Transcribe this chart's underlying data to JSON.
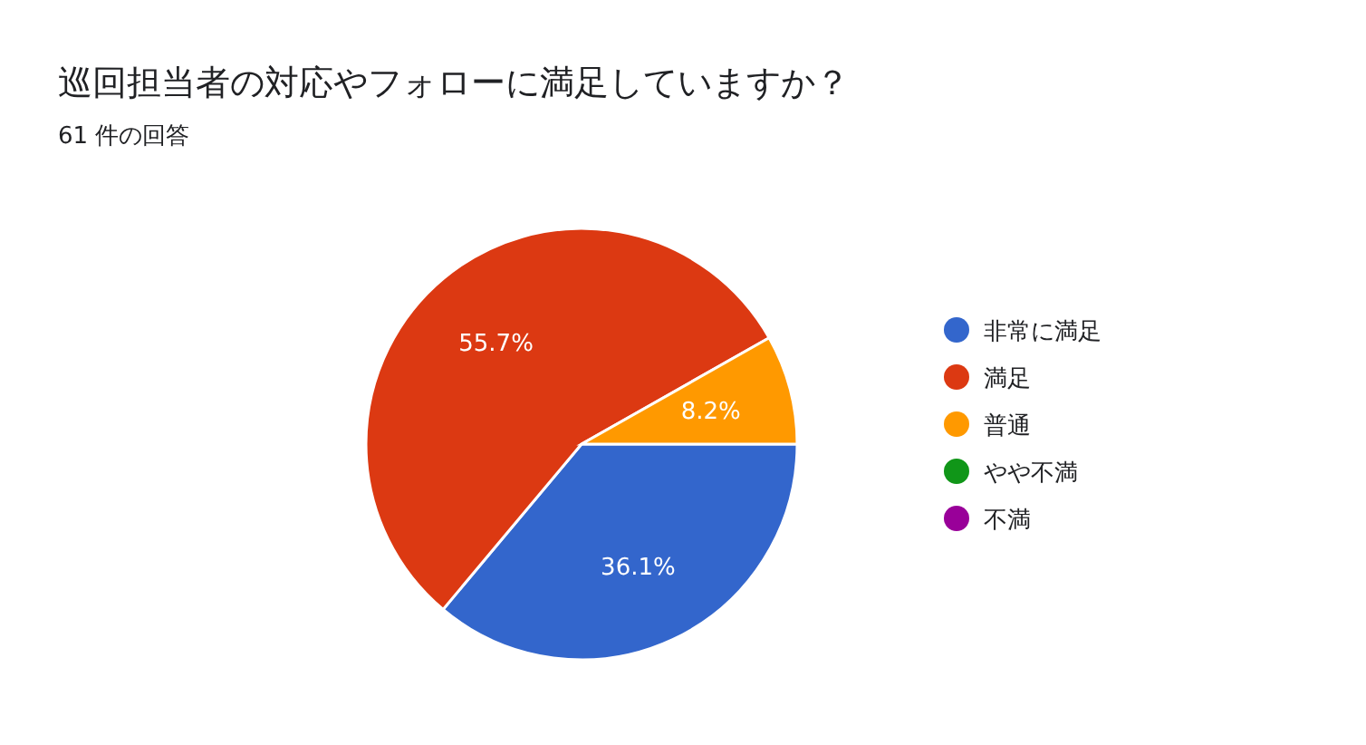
{
  "chart_data": {
    "type": "pie",
    "title": "巡回担当者の対応やフォローに満足していますか？",
    "subtitle": "61 件の回答",
    "categories": [
      "非常に満足",
      "満足",
      "普通",
      "やや不満",
      "不満"
    ],
    "values": [
      36.1,
      55.7,
      8.2,
      0,
      0
    ],
    "colors": [
      "#3366cc",
      "#dc3912",
      "#ff9900",
      "#109618",
      "#990099"
    ],
    "value_labels": [
      "36.1%",
      "55.7%",
      "8.2%",
      null,
      null
    ],
    "legend": "right"
  }
}
